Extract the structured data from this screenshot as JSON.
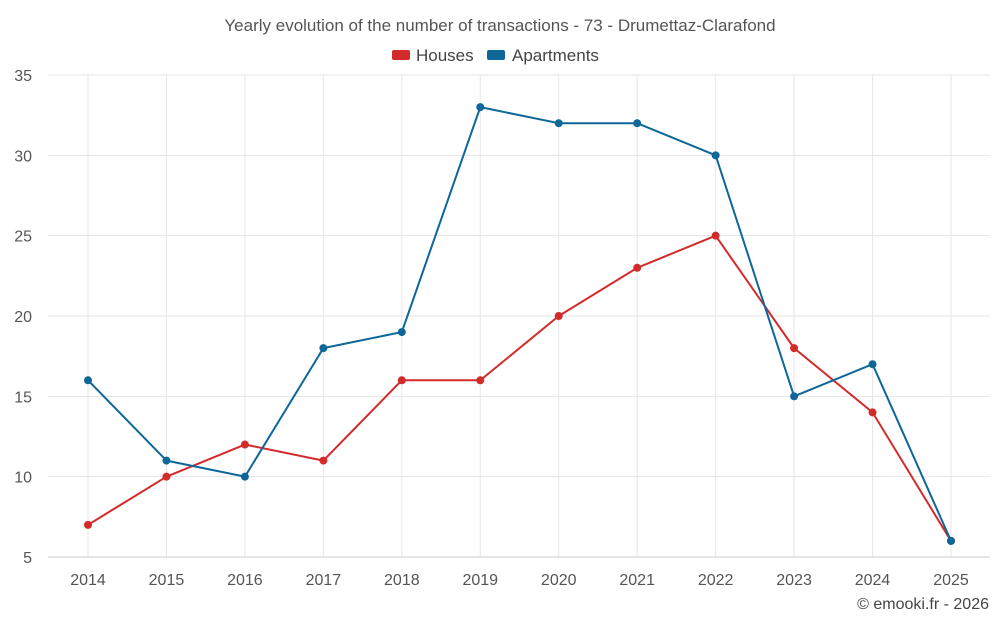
{
  "chart_data": {
    "type": "line",
    "title": "Yearly evolution of the number of transactions - 73 - Drumettaz-Clarafond",
    "categories": [
      "2014",
      "2015",
      "2016",
      "2017",
      "2018",
      "2019",
      "2020",
      "2021",
      "2022",
      "2023",
      "2024",
      "2025"
    ],
    "series": [
      {
        "name": "Houses",
        "color": "#d32a2a",
        "values": [
          7,
          10,
          12,
          11,
          16,
          16,
          20,
          23,
          25,
          18,
          14,
          6
        ]
      },
      {
        "name": "Apartments",
        "color": "#0d6799",
        "values": [
          16,
          11,
          10,
          18,
          19,
          33,
          32,
          32,
          30,
          15,
          17,
          6
        ]
      }
    ],
    "ylim": [
      5,
      35
    ],
    "yticks": [
      "5",
      "10",
      "15",
      "20",
      "25",
      "30",
      "35"
    ],
    "grid": true,
    "legend": "top-center",
    "credit": "© emooki.fr - 2026"
  }
}
